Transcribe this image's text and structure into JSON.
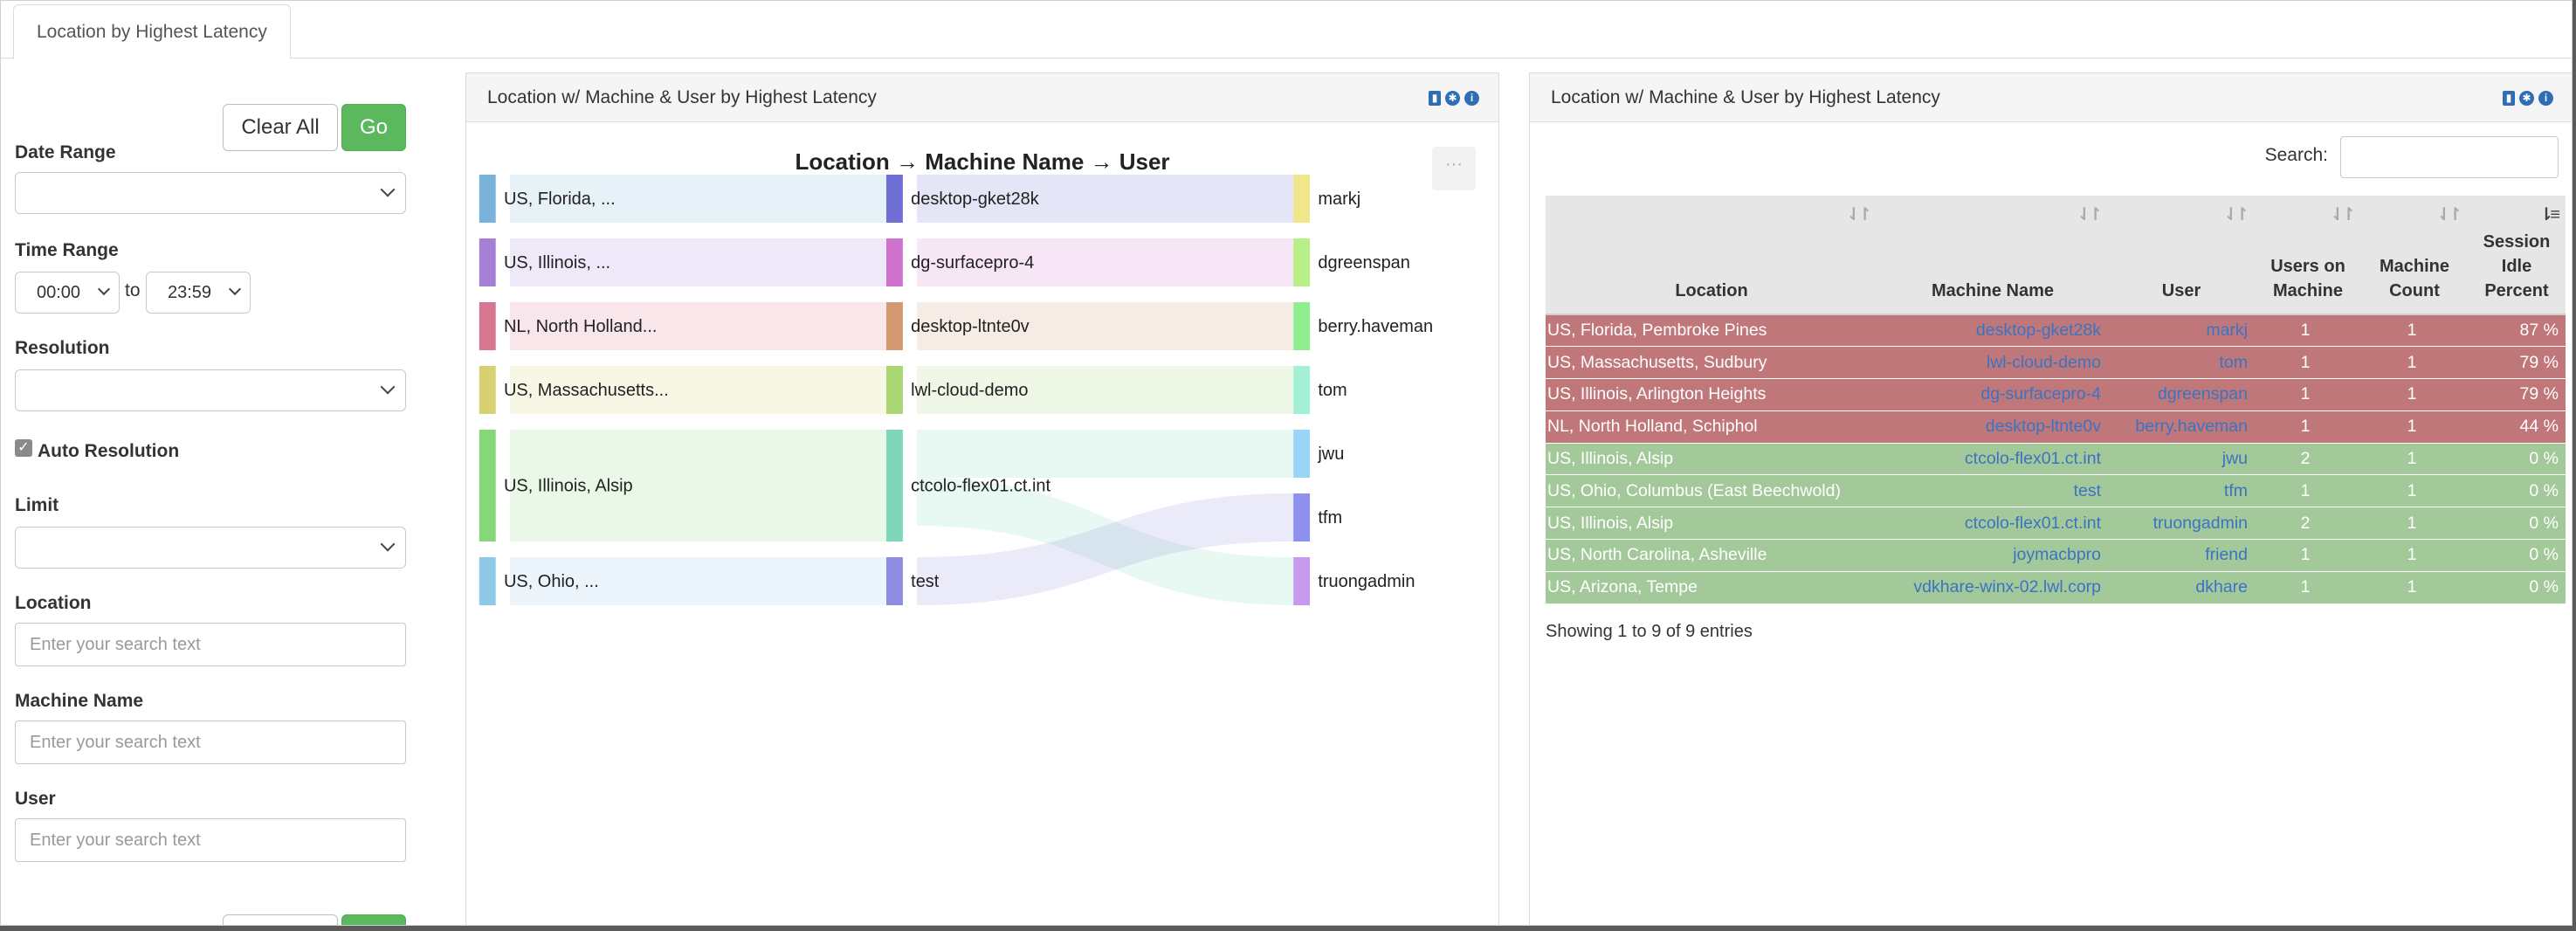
{
  "tab": {
    "label": "Location by Highest Latency"
  },
  "sidebar": {
    "clear_label": "Clear All",
    "go_label": "Go",
    "date_range_label": "Date Range",
    "date_range_value": "",
    "time_range_label": "Time Range",
    "time_from": "00:00",
    "time_to_word": "to",
    "time_to": "23:59",
    "resolution_label": "Resolution",
    "resolution_value": "",
    "auto_resolution_label": "Auto Resolution",
    "limit_label": "Limit",
    "limit_value": "",
    "location_label": "Location",
    "location_placeholder": "Enter your search text",
    "machine_label": "Machine Name",
    "machine_placeholder": "Enter your search text",
    "user_label": "User",
    "user_placeholder": "Enter your search text"
  },
  "left_panel": {
    "title": "Location w/ Machine & User by Highest Latency",
    "chart_title": "Location → Machine Name → User",
    "ctx_label": "···"
  },
  "chart_data": {
    "type": "sankey",
    "title": "Location → Machine Name → User",
    "nodes": {
      "location": [
        {
          "label": "US, Florida, ...",
          "color": "#7ab3d9"
        },
        {
          "label": "US, Illinois, ...",
          "color": "#a67fd6"
        },
        {
          "label": "NL, North Holland...",
          "color": "#d67690"
        },
        {
          "label": "US, Massachusetts...",
          "color": "#d8d172"
        },
        {
          "label": "US, Illinois, Alsip",
          "color": "#86d67a"
        },
        {
          "label": "US, Ohio, ...",
          "color": "#8fc9ea"
        }
      ],
      "machine": [
        {
          "label": "desktop-gket28k",
          "color": "#6f6fd6"
        },
        {
          "label": "dg-surfacepro-4",
          "color": "#cf73cf"
        },
        {
          "label": "desktop-ltnte0v",
          "color": "#d49870"
        },
        {
          "label": "lwl-cloud-demo",
          "color": "#a9d672"
        },
        {
          "label": "ctcolo-flex01.ct.int",
          "color": "#80d6b9"
        },
        {
          "label": "test",
          "color": "#8c8ce0"
        }
      ],
      "user": [
        {
          "label": "markj",
          "color": "#f0e68c"
        },
        {
          "label": "dgreenspan",
          "color": "#b9ef88"
        },
        {
          "label": "berry.haveman",
          "color": "#90ee90"
        },
        {
          "label": "tom",
          "color": "#a4f0d4"
        },
        {
          "label": "jwu",
          "color": "#9ad4f7"
        },
        {
          "label": "tfm",
          "color": "#8e91f0"
        },
        {
          "label": "truongadmin",
          "color": "#c79af0"
        }
      ]
    },
    "links": [
      {
        "source": "US, Florida, ...",
        "target": "desktop-gket28k",
        "value": 1
      },
      {
        "source": "US, Illinois, ...",
        "target": "dg-surfacepro-4",
        "value": 1
      },
      {
        "source": "NL, North Holland...",
        "target": "desktop-ltnte0v",
        "value": 1
      },
      {
        "source": "US, Massachusetts...",
        "target": "lwl-cloud-demo",
        "value": 1
      },
      {
        "source": "US, Illinois, Alsip",
        "target": "ctcolo-flex01.ct.int",
        "value": 2
      },
      {
        "source": "US, Ohio, ...",
        "target": "test",
        "value": 1
      },
      {
        "source": "desktop-gket28k",
        "target": "markj",
        "value": 1
      },
      {
        "source": "dg-surfacepro-4",
        "target": "dgreenspan",
        "value": 1
      },
      {
        "source": "desktop-ltnte0v",
        "target": "berry.haveman",
        "value": 1
      },
      {
        "source": "lwl-cloud-demo",
        "target": "tom",
        "value": 1
      },
      {
        "source": "ctcolo-flex01.ct.int",
        "target": "jwu",
        "value": 1
      },
      {
        "source": "ctcolo-flex01.ct.int",
        "target": "truongadmin",
        "value": 1
      },
      {
        "source": "test",
        "target": "tfm",
        "value": 1
      }
    ]
  },
  "right_panel": {
    "title": "Location w/ Machine & User by Highest Latency",
    "search_label": "Search:",
    "search_value": "",
    "columns": [
      "Location",
      "Machine Name",
      "User",
      "Users on Machine",
      "Machine Count",
      "Session Idle Percent"
    ],
    "rows": [
      {
        "status": "red",
        "location": "US, Florida, Pembroke Pines",
        "machine": "desktop-gket28k",
        "user": "markj",
        "users_on_machine": "1",
        "machine_count": "1",
        "idle": "87 %"
      },
      {
        "status": "red",
        "location": "US, Massachusetts, Sudbury",
        "machine": "lwl-cloud-demo",
        "user": "tom",
        "users_on_machine": "1",
        "machine_count": "1",
        "idle": "79 %"
      },
      {
        "status": "red",
        "location": "US, Illinois, Arlington Heights",
        "machine": "dg-surfacepro-4",
        "user": "dgreenspan",
        "users_on_machine": "1",
        "machine_count": "1",
        "idle": "79 %"
      },
      {
        "status": "red",
        "location": "NL, North Holland, Schiphol",
        "machine": "desktop-ltnte0v",
        "user": "berry.haveman",
        "users_on_machine": "1",
        "machine_count": "1",
        "idle": "44 %"
      },
      {
        "status": "green",
        "location": "US, Illinois, Alsip",
        "machine": "ctcolo-flex01.ct.int",
        "user": "jwu",
        "users_on_machine": "2",
        "machine_count": "1",
        "idle": "0 %"
      },
      {
        "status": "green",
        "location": "US, Ohio, Columbus (East Beechwold)",
        "machine": "test",
        "user": "tfm",
        "users_on_machine": "1",
        "machine_count": "1",
        "idle": "0 %"
      },
      {
        "status": "green",
        "location": "US, Illinois, Alsip",
        "machine": "ctcolo-flex01.ct.int",
        "user": "truongadmin",
        "users_on_machine": "2",
        "machine_count": "1",
        "idle": "0 %"
      },
      {
        "status": "green",
        "location": "US, North Carolina, Asheville",
        "machine": "joymacbpro",
        "user": "friend",
        "users_on_machine": "1",
        "machine_count": "1",
        "idle": "0 %"
      },
      {
        "status": "green",
        "location": "US, Arizona, Tempe",
        "machine": "vdkhare-winx-02.lwl.corp",
        "user": "dkhare",
        "users_on_machine": "1",
        "machine_count": "1",
        "idle": "0 %"
      }
    ],
    "showing_text": "Showing 1 to 9 of 9 entries"
  }
}
